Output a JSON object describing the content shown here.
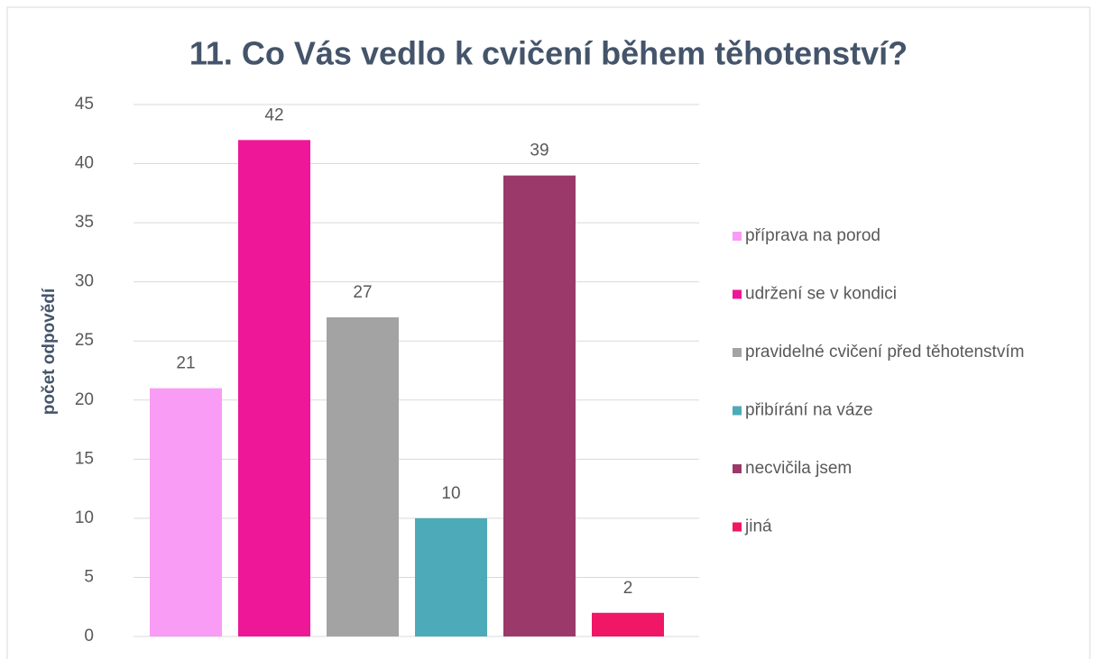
{
  "chart_data": {
    "type": "bar",
    "title": "11. Co Vás vedlo k cvičení během těhotenství?",
    "y_label": "počet odpovědí",
    "series": [
      {
        "name": "příprava na porod",
        "color": "#f89cf5",
        "values": [
          21
        ]
      },
      {
        "name": "udržení se v kondici",
        "color": "#ee1797",
        "values": [
          42
        ]
      },
      {
        "name": "pravidelné cvičení před těhotenstvím",
        "color": "#a3a3a3",
        "values": [
          27
        ]
      },
      {
        "name": "přibírání na váze",
        "color": "#4daab8",
        "values": [
          10
        ]
      },
      {
        "name": "necvičila jsem",
        "color": "#9b3a6a",
        "values": [
          39
        ]
      },
      {
        "name": "jiná",
        "color": "#ef1766",
        "values": [
          2
        ]
      }
    ],
    "ylim": [
      0,
      45
    ],
    "yticks": [
      0,
      5,
      10,
      15,
      20,
      25,
      30,
      35,
      40,
      45
    ],
    "grid": true,
    "legend": "right"
  }
}
